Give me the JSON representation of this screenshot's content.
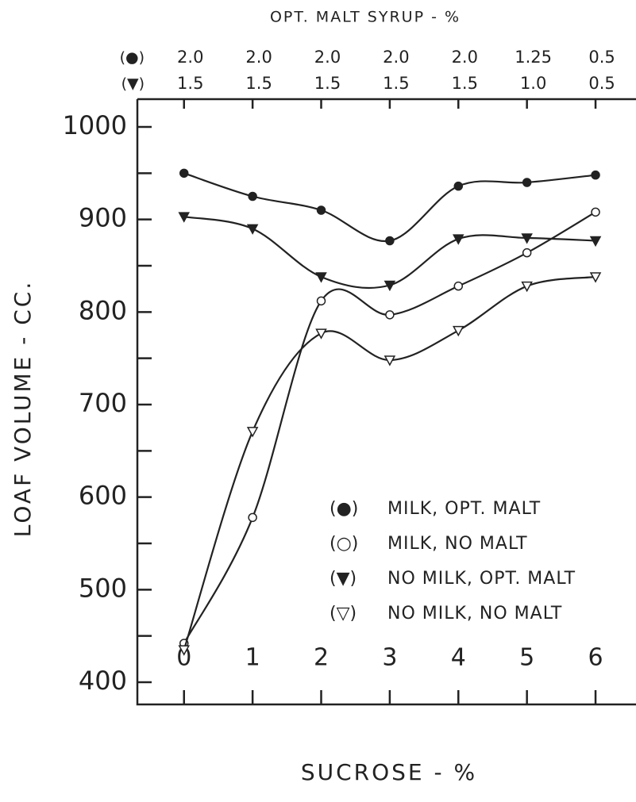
{
  "chart_data": {
    "type": "line",
    "xlabel": "SUCROSE - %",
    "ylabel": "LOAF VOLUME - CC.",
    "top_axis_title": "OPT. MALT SYRUP - %",
    "top_axis_prefixes": [
      "(●)",
      "(▼)"
    ],
    "top_axis_rows": [
      [
        "2.0",
        "2.0",
        "2.0",
        "2.0",
        "2.0",
        "1.25",
        "0.5"
      ],
      [
        "1.5",
        "1.5",
        "1.5",
        "1.5",
        "1.5",
        "1.0",
        "0.5"
      ]
    ],
    "x": [
      0,
      1,
      2,
      3,
      4,
      5,
      6
    ],
    "xlim": [
      -0.68,
      6.59
    ],
    "xticks": [
      0,
      1,
      2,
      3,
      4,
      5,
      6
    ],
    "ylim": [
      376,
      1030
    ],
    "yticks": [
      400,
      500,
      600,
      700,
      800,
      900,
      1000
    ],
    "yminor_ticks": [
      450,
      550,
      650,
      750,
      850,
      950
    ],
    "series": [
      {
        "name": "MILK, OPT. MALT",
        "legend_prefix": "(●)",
        "marker": "circle",
        "filled": true,
        "color": "#222",
        "values": [
          950,
          925,
          910,
          877,
          936,
          940,
          948
        ]
      },
      {
        "name": "MILK, NO MALT",
        "legend_prefix": "(○)",
        "marker": "circle",
        "filled": false,
        "color": "#222",
        "values": [
          442,
          578,
          812,
          797,
          828,
          864,
          908
        ]
      },
      {
        "name": "NO MILK, OPT. MALT",
        "legend_prefix": "(▼)",
        "marker": "triangle",
        "filled": true,
        "color": "#222",
        "values": [
          903,
          890,
          838,
          829,
          879,
          880,
          877
        ]
      },
      {
        "name": "NO MILK, NO MALT",
        "legend_prefix": "(▽)",
        "marker": "triangle",
        "filled": false,
        "color": "#222",
        "values": [
          435,
          671,
          777,
          748,
          780,
          828,
          838
        ]
      }
    ]
  }
}
